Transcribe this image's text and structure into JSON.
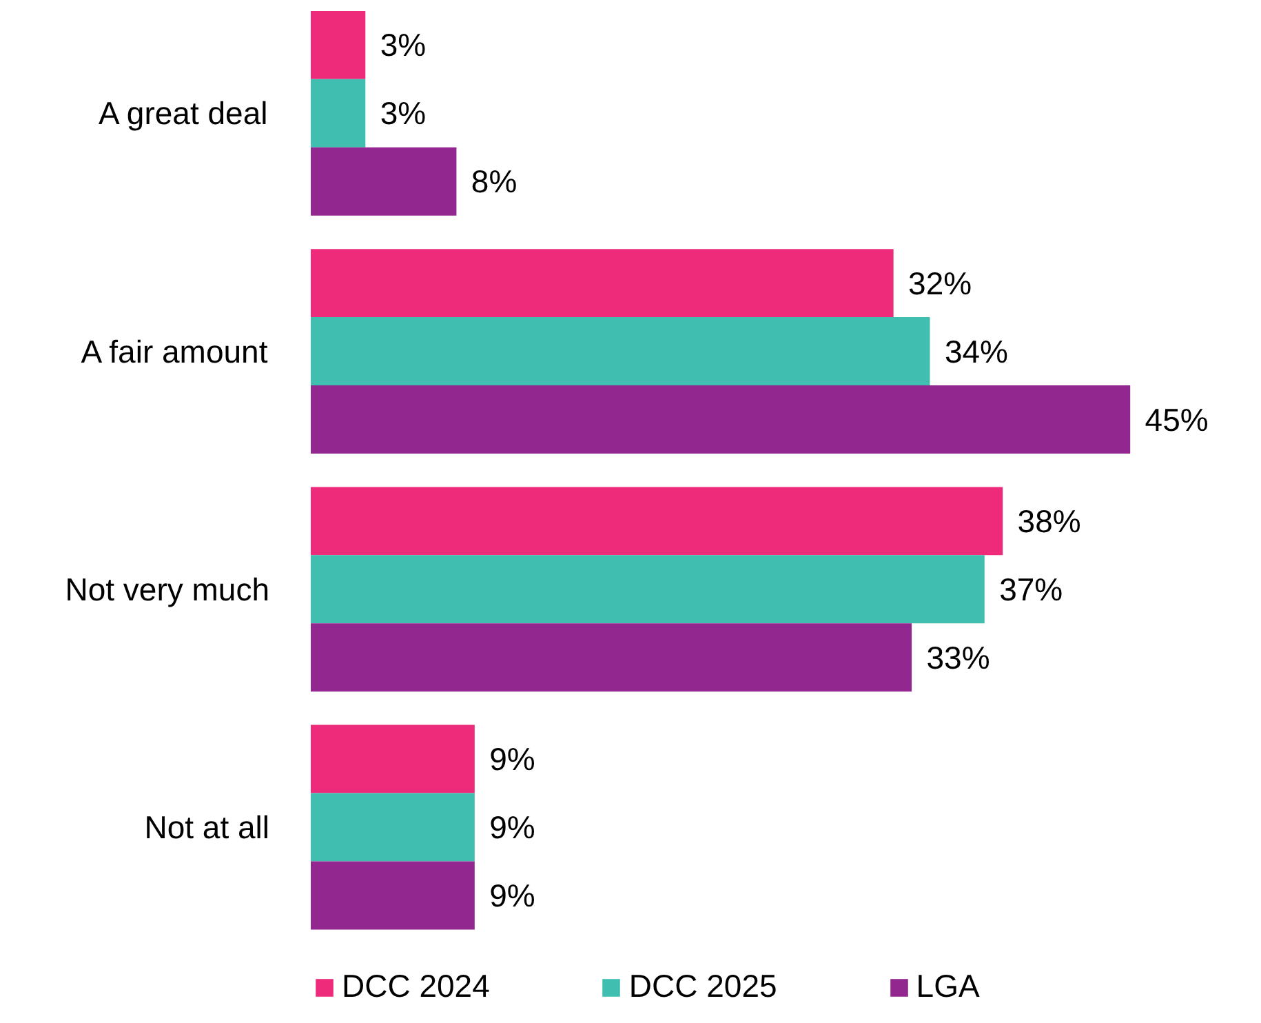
{
  "chart_data": {
    "type": "bar",
    "orientation": "horizontal",
    "categories": [
      "A great deal",
      "A fair amount",
      "Not very much",
      "Not at all"
    ],
    "series": [
      {
        "name": "DCC 2024",
        "color": "#ee2a7b",
        "values": [
          3,
          32,
          38,
          9
        ],
        "value_labels": [
          "3%",
          "32%",
          "38%",
          "9%"
        ]
      },
      {
        "name": "DCC 2025",
        "color": "#40bfb1",
        "values": [
          3,
          34,
          37,
          9
        ],
        "value_labels": [
          "3%",
          "34%",
          "37%",
          "9%"
        ]
      },
      {
        "name": "LGA",
        "color": "#92278f",
        "values": [
          8,
          45,
          33,
          9
        ],
        "value_labels": [
          "8%",
          "45%",
          "33%",
          "9%"
        ]
      }
    ],
    "legend": "bottom",
    "grid": false
  }
}
